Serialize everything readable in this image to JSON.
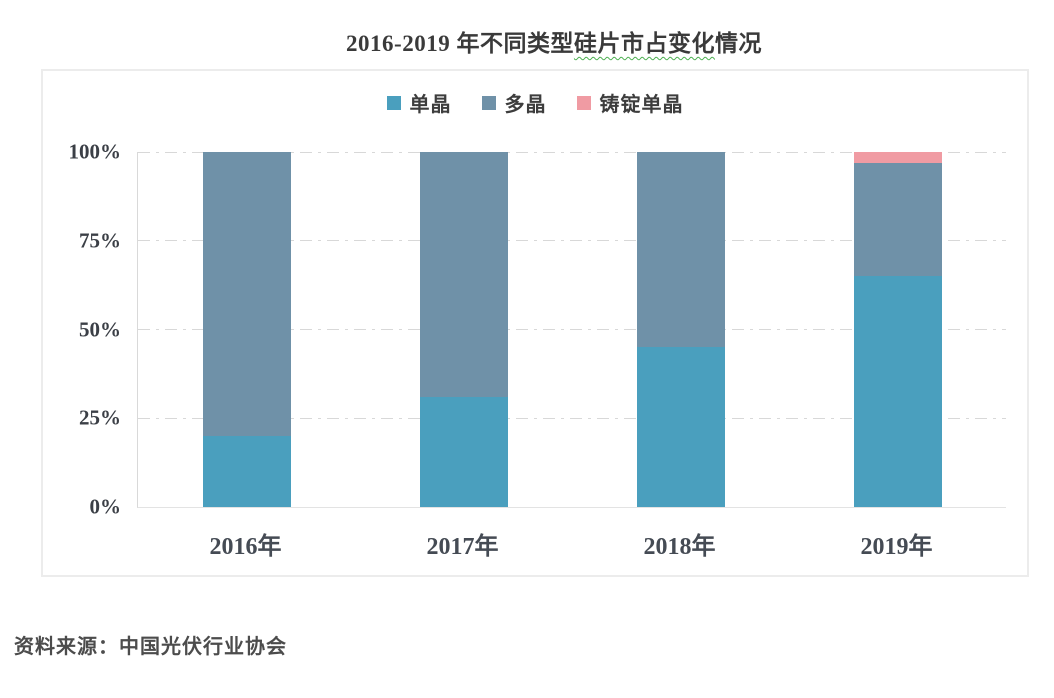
{
  "title": {
    "full": "2016-2019 年不同类型硅片市占变化情况",
    "before_wavy": "2016-2019 年不同类型",
    "wavy": "硅片市占变化",
    "after_wavy": "情况"
  },
  "source": "资料来源：中国光伏行业协会",
  "colors": {
    "mono_crystal": "#4a9fbe",
    "multi_crystal": "#6f91a8",
    "cast_mono_crystal": "#f09ba3",
    "gridline": "#d8d8d8",
    "axis_line": "#d9d9d9",
    "wavy_underline": "#4caf50",
    "title_text": "#3a3a3a"
  },
  "chart_data": {
    "type": "bar",
    "stacked": true,
    "title": "2016-2019 年不同类型硅片市占变化情况",
    "categories": [
      "2016年",
      "2017年",
      "2018年",
      "2019年"
    ],
    "series": [
      {
        "name": "单晶",
        "color": "#4a9fbe",
        "values": [
          20,
          31,
          45,
          65
        ]
      },
      {
        "name": "多晶",
        "color": "#6f91a8",
        "values": [
          80,
          69,
          55,
          32
        ]
      },
      {
        "name": "铸锭单晶",
        "color": "#f09ba3",
        "values": [
          0,
          0,
          0,
          3
        ]
      }
    ],
    "ylabel": "",
    "xlabel": "",
    "ylim": [
      0,
      100
    ],
    "yticks": [
      {
        "value": 0,
        "label": "0%"
      },
      {
        "value": 25,
        "label": "25%"
      },
      {
        "value": 50,
        "label": "50%"
      },
      {
        "value": 75,
        "label": "75%"
      },
      {
        "value": 100,
        "label": "100%"
      }
    ],
    "grid": "horizontal-dash-dot",
    "legend_position": "top-center"
  }
}
